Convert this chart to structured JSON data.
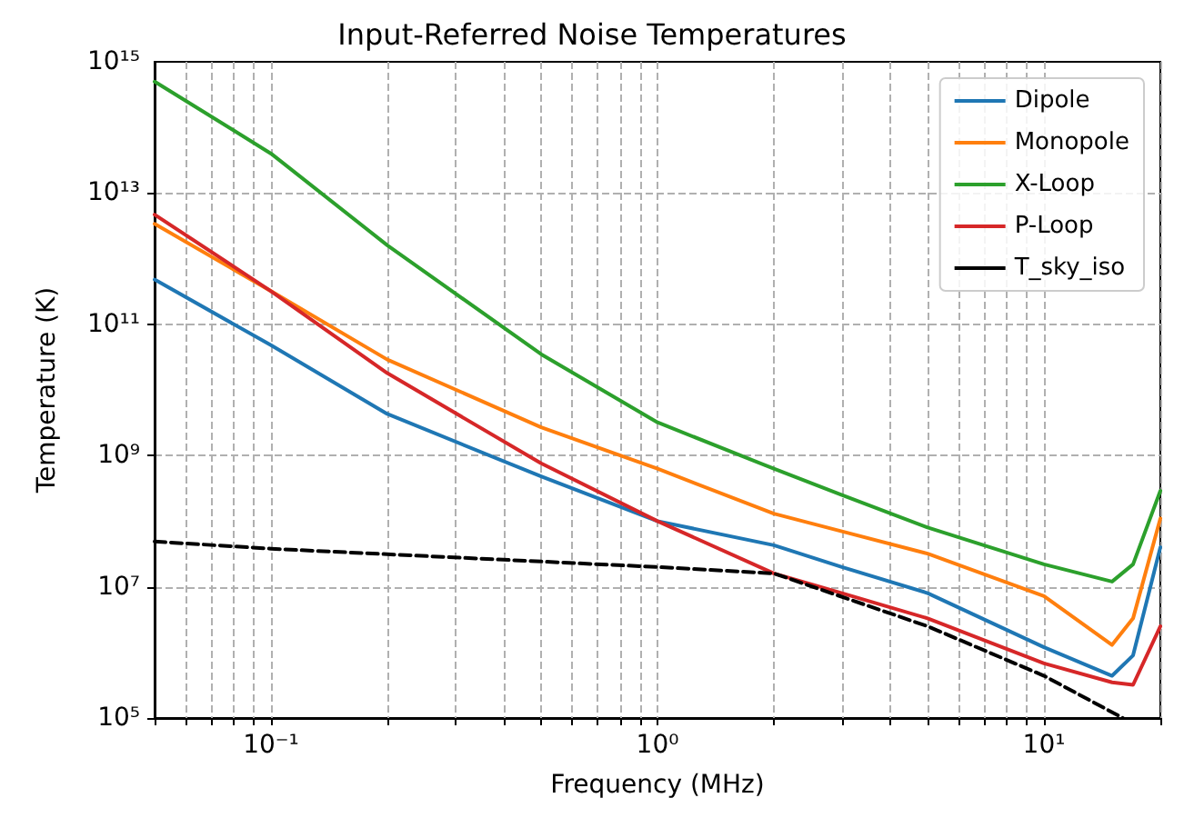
{
  "chart_data": {
    "type": "line",
    "title": "Input-Referred Noise Temperatures",
    "xlabel": "Frequency (MHz)",
    "ylabel": "Temperature (K)",
    "log": "xy",
    "grid": true,
    "legend": "top right",
    "marker": "none",
    "line_style": "solid",
    "xlim": [
      0.05,
      20
    ],
    "ylim": [
      100000,
      1000000000000000
    ],
    "xticks": [
      {
        "value": 0.05,
        "label": null
      },
      {
        "value": 0.06,
        "label": null
      },
      {
        "value": 0.07,
        "label": null
      },
      {
        "value": 0.08,
        "label": null
      },
      {
        "value": 0.09,
        "label": null
      },
      {
        "value": 0.1,
        "label": "10⁻¹"
      },
      {
        "value": 0.2,
        "label": null
      },
      {
        "value": 0.3,
        "label": null
      },
      {
        "value": 0.4,
        "label": null
      },
      {
        "value": 0.5,
        "label": null
      },
      {
        "value": 0.6,
        "label": null
      },
      {
        "value": 0.7,
        "label": null
      },
      {
        "value": 0.8,
        "label": null
      },
      {
        "value": 0.9,
        "label": null
      },
      {
        "value": 1,
        "label": "10⁰"
      },
      {
        "value": 2,
        "label": null
      },
      {
        "value": 3,
        "label": null
      },
      {
        "value": 4,
        "label": null
      },
      {
        "value": 5,
        "label": null
      },
      {
        "value": 6,
        "label": null
      },
      {
        "value": 7,
        "label": null
      },
      {
        "value": 8,
        "label": null
      },
      {
        "value": 9,
        "label": null
      },
      {
        "value": 10,
        "label": "10¹"
      },
      {
        "value": 20,
        "label": null
      }
    ],
    "yticks": [
      {
        "value": 100000,
        "label": "10⁵"
      },
      {
        "value": 10000000,
        "label": "10⁷"
      },
      {
        "value": 1000000000,
        "label": "10⁹"
      },
      {
        "value": 100000000000,
        "label": "10¹¹"
      },
      {
        "value": 10000000000000,
        "label": "10¹³"
      },
      {
        "value": 1000000000000000,
        "label": "10¹⁵"
      }
    ],
    "x": [
      0.05,
      0.1,
      0.2,
      0.5,
      1,
      2,
      3,
      5,
      10,
      15,
      17,
      20
    ],
    "series": [
      {
        "name": "Dipole",
        "color": "#1f77b4",
        "values": [
          480000000000.0,
          48000000000.0,
          4300000000.0,
          480000000.0,
          100000000.0,
          43000000.0,
          20000000.0,
          8000000.0,
          1200000.0,
          440000.0,
          900000.0,
          40000000.0
        ]
      },
      {
        "name": "Monopole",
        "color": "#ff7f0e",
        "values": [
          3400000000000.0,
          320000000000.0,
          29000000000.0,
          2700000000.0,
          630000000.0,
          130000000.0,
          70000000.0,
          32000000.0,
          7200000.0,
          1300000.0,
          3300000.0,
          110000000.0
        ]
      },
      {
        "name": "X-Loop",
        "color": "#2ca02c",
        "values": [
          500000000000000.0,
          40000000000000.0,
          1600000000000.0,
          35000000000.0,
          3200000000.0,
          630000000.0,
          250000000.0,
          80000000.0,
          22000000.0,
          12000000.0,
          22000000.0,
          290000000.0
        ]
      },
      {
        "name": "P-Loop",
        "color": "#d62728",
        "values": [
          4700000000000.0,
          320000000000.0,
          18000000000.0,
          760000000.0,
          100000000.0,
          16000000.0,
          8000000.0,
          3300000.0,
          680000.0,
          350000.0,
          320000.0,
          2500000.0
        ]
      },
      {
        "name": "T_sky_iso",
        "color": "#000000",
        "line_style": "dashed",
        "x": [
          0.05,
          0.1,
          1,
          2,
          5,
          10,
          16
        ],
        "values": [
          49000000.0,
          38000000.0,
          20000000.0,
          16000000.0,
          2500000.0,
          440000.0,
          100000.0
        ]
      }
    ]
  }
}
